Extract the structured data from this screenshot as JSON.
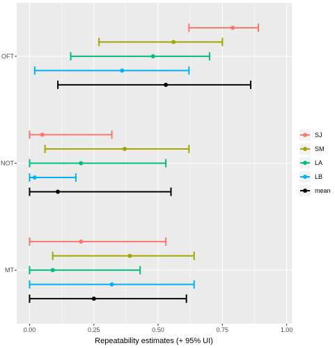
{
  "chart_data": {
    "type": "errorbar",
    "title": "",
    "xlabel": "Repeatability estimates (+ 95% UI)",
    "ylabel": "",
    "xlim": [
      -0.05,
      1.02
    ],
    "x_ticks": [
      0.0,
      0.25,
      0.5,
      0.75,
      1.0
    ],
    "x_tick_labels": [
      "0.00",
      "0.25",
      "0.50",
      "0.75",
      "1.00"
    ],
    "categories": [
      "OFT",
      "NOT",
      "MT"
    ],
    "grid": true,
    "legend_position": "right",
    "series": [
      {
        "name": "SJ",
        "color": "#F8766D",
        "points": [
          {
            "category": "OFT",
            "estimate": 0.79,
            "lower": 0.62,
            "upper": 0.89
          },
          {
            "category": "NOT",
            "estimate": 0.05,
            "lower": 0.0,
            "upper": 0.32
          },
          {
            "category": "MT",
            "estimate": 0.2,
            "lower": 0.0,
            "upper": 0.53
          }
        ]
      },
      {
        "name": "SM",
        "color": "#A3A500",
        "points": [
          {
            "category": "OFT",
            "estimate": 0.56,
            "lower": 0.27,
            "upper": 0.75
          },
          {
            "category": "NOT",
            "estimate": 0.37,
            "lower": 0.06,
            "upper": 0.62
          },
          {
            "category": "MT",
            "estimate": 0.39,
            "lower": 0.09,
            "upper": 0.64
          }
        ]
      },
      {
        "name": "LA",
        "color": "#00BF7D",
        "points": [
          {
            "category": "OFT",
            "estimate": 0.48,
            "lower": 0.16,
            "upper": 0.7
          },
          {
            "category": "NOT",
            "estimate": 0.2,
            "lower": 0.0,
            "upper": 0.53
          },
          {
            "category": "MT",
            "estimate": 0.09,
            "lower": 0.0,
            "upper": 0.43
          }
        ]
      },
      {
        "name": "LB",
        "color": "#00B0F6",
        "points": [
          {
            "category": "OFT",
            "estimate": 0.36,
            "lower": 0.02,
            "upper": 0.62
          },
          {
            "category": "NOT",
            "estimate": 0.02,
            "lower": 0.0,
            "upper": 0.18
          },
          {
            "category": "MT",
            "estimate": 0.32,
            "lower": 0.0,
            "upper": 0.64
          }
        ]
      },
      {
        "name": "mean",
        "color": "#000000",
        "points": [
          {
            "category": "OFT",
            "estimate": 0.53,
            "lower": 0.11,
            "upper": 0.86
          },
          {
            "category": "NOT",
            "estimate": 0.11,
            "lower": 0.0,
            "upper": 0.55
          },
          {
            "category": "MT",
            "estimate": 0.25,
            "lower": 0.0,
            "upper": 0.61
          }
        ]
      }
    ]
  }
}
